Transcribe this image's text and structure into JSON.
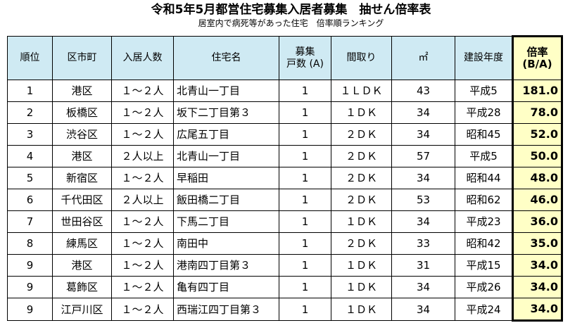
{
  "title": "令和5年5月都営住宅募集入居者募集　抽せん倍率表",
  "subtitle": "居室内で病死等があった住宅　倍率順ランキング",
  "headers": {
    "rank": "順位",
    "ward": "区市町",
    "occupants": "入居人数",
    "housing": "住宅名",
    "units_line1": "募集",
    "units_line2": "戸数 (A)",
    "layout": "間取り",
    "area": "㎡",
    "year": "建設年度",
    "ratio_line1": "倍率",
    "ratio_line2": "(B/A)"
  },
  "rows": [
    {
      "rank": "1",
      "ward": "港区",
      "occupants": "１～２人",
      "housing": "北青山一丁目",
      "units": "1",
      "layout": "１ＬＤＫ",
      "area": "43",
      "year": "平成5",
      "ratio": "181.0"
    },
    {
      "rank": "2",
      "ward": "板橋区",
      "occupants": "１～２人",
      "housing": "坂下二丁目第３",
      "units": "1",
      "layout": "１ＤＫ",
      "area": "34",
      "year": "平成28",
      "ratio": "78.0"
    },
    {
      "rank": "3",
      "ward": "渋谷区",
      "occupants": "１～２人",
      "housing": "広尾五丁目",
      "units": "1",
      "layout": "２ＤＫ",
      "area": "34",
      "year": "昭和45",
      "ratio": "52.0"
    },
    {
      "rank": "4",
      "ward": "港区",
      "occupants": "２人以上",
      "housing": "北青山一丁目",
      "units": "1",
      "layout": "２ＤＫ",
      "area": "57",
      "year": "平成5",
      "ratio": "50.0"
    },
    {
      "rank": "5",
      "ward": "新宿区",
      "occupants": "１～２人",
      "housing": "早稲田",
      "units": "1",
      "layout": "２ＤＫ",
      "area": "34",
      "year": "昭和44",
      "ratio": "48.0"
    },
    {
      "rank": "6",
      "ward": "千代田区",
      "occupants": "２人以上",
      "housing": "飯田橋二丁目",
      "units": "1",
      "layout": "２ＤＫ",
      "area": "53",
      "year": "昭和62",
      "ratio": "46.0"
    },
    {
      "rank": "7",
      "ward": "世田谷区",
      "occupants": "１～２人",
      "housing": "下馬二丁目",
      "units": "1",
      "layout": "１ＤＫ",
      "area": "34",
      "year": "平成23",
      "ratio": "36.0"
    },
    {
      "rank": "8",
      "ward": "練馬区",
      "occupants": "１～２人",
      "housing": "南田中",
      "units": "1",
      "layout": "２ＤＫ",
      "area": "33",
      "year": "昭和42",
      "ratio": "35.0"
    },
    {
      "rank": "9",
      "ward": "港区",
      "occupants": "１～２人",
      "housing": "港南四丁目第３",
      "units": "1",
      "layout": "１ＤＫ",
      "area": "31",
      "year": "平成15",
      "ratio": "34.0"
    },
    {
      "rank": "9",
      "ward": "葛飾区",
      "occupants": "１～２人",
      "housing": "亀有四丁目",
      "units": "1",
      "layout": "１ＤＫ",
      "area": "34",
      "year": "平成26",
      "ratio": "34.0"
    },
    {
      "rank": "9",
      "ward": "江戸川区",
      "occupants": "１～２人",
      "housing": "西瑞江四丁目第３",
      "units": "1",
      "layout": "１ＤＫ",
      "area": "34",
      "year": "平成24",
      "ratio": "34.0"
    }
  ]
}
